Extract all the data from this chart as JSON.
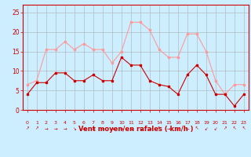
{
  "x": [
    0,
    1,
    2,
    3,
    4,
    5,
    6,
    7,
    8,
    9,
    10,
    11,
    12,
    13,
    14,
    15,
    16,
    17,
    18,
    19,
    20,
    21,
    22,
    23
  ],
  "vent_moyen": [
    4,
    7,
    7,
    9.5,
    9.5,
    7.5,
    7.5,
    9,
    7.5,
    7.5,
    13.5,
    11.5,
    11.5,
    7.5,
    6.5,
    6,
    4,
    9,
    11.5,
    9,
    4,
    4,
    1,
    4
  ],
  "rafales": [
    6.5,
    7.5,
    15.5,
    15.5,
    17.5,
    15.5,
    17,
    15.5,
    15.5,
    12,
    15,
    22.5,
    22.5,
    20.5,
    15.5,
    13.5,
    13.5,
    19.5,
    19.5,
    15,
    7.5,
    4,
    6.5,
    6.5
  ],
  "color_moyen": "#cc0000",
  "color_rafales": "#ff9999",
  "bg_color": "#cceeff",
  "grid_color": "#b0b0b0",
  "xlabel": "Vent moyen/en rafales ( km/h )",
  "xlabel_color": "#cc0000",
  "ylim": [
    0,
    27
  ],
  "yticks": [
    0,
    5,
    10,
    15,
    20,
    25
  ],
  "xlim": [
    -0.5,
    23.5
  ],
  "arrow_symbols": [
    "↗",
    "↗",
    "→",
    "→",
    "→",
    "↘",
    "→",
    "→",
    "→",
    "→",
    "→",
    "↘",
    "↘",
    "→",
    "↖",
    "→",
    "↙",
    "←",
    "↖",
    "↙",
    "↙",
    "↗",
    "↖",
    "↖"
  ]
}
